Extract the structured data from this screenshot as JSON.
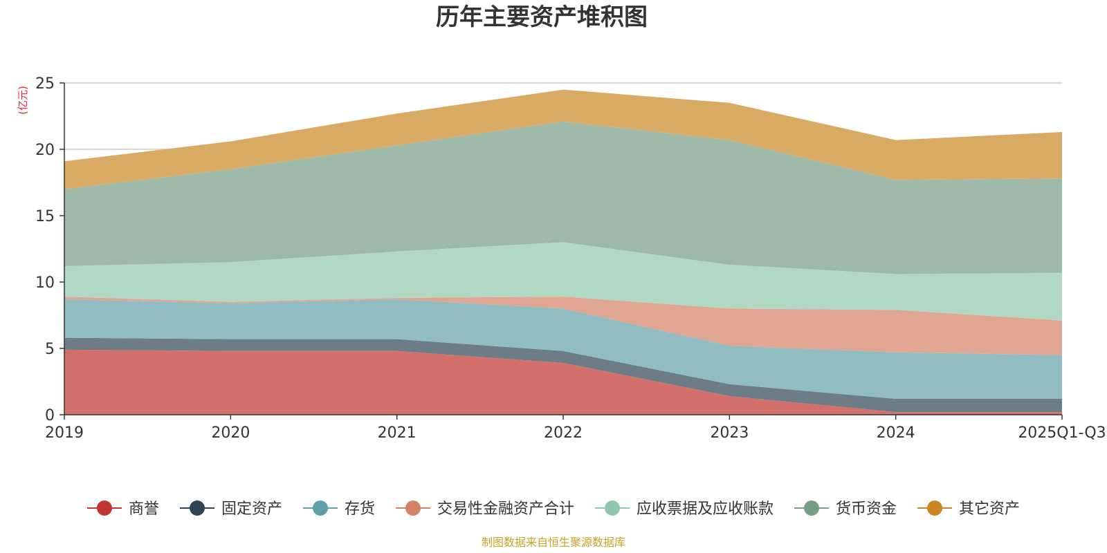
{
  "chart_data": {
    "type": "area",
    "stacked": true,
    "title": "历年主要资产堆积图",
    "unit_label": "(亿元)",
    "source_note": "制图数据来自恒生聚源数据库",
    "x": [
      "2019",
      "2020",
      "2021",
      "2022",
      "2023",
      "2024",
      "2025Q1-Q3"
    ],
    "ylim": [
      0,
      25
    ],
    "yticks": [
      0,
      5,
      10,
      15,
      20,
      25
    ],
    "grid": true,
    "legend_position": "bottom",
    "series": [
      {
        "name": "商誉",
        "color": "#c23531",
        "fill": "#d4706c",
        "values": [
          4.9,
          4.8,
          4.8,
          3.9,
          1.4,
          0.2,
          0.2
        ]
      },
      {
        "name": "固定资产",
        "color": "#2f4554",
        "fill": "#6e7c86",
        "values": [
          0.9,
          0.9,
          0.9,
          0.9,
          0.9,
          1.0,
          1.0
        ]
      },
      {
        "name": "存货",
        "color": "#61a0a8",
        "fill": "#90bcc2",
        "values": [
          2.9,
          2.7,
          3.0,
          3.2,
          2.9,
          3.5,
          3.3
        ]
      },
      {
        "name": "交易性金融资产合计",
        "color": "#d48265",
        "fill": "#e0a692",
        "values": [
          0.2,
          0.1,
          0.1,
          0.9,
          2.8,
          3.2,
          2.6
        ]
      },
      {
        "name": "应收票据及应收账款",
        "color": "#91c7ae",
        "fill": "#b1d7c5",
        "values": [
          2.3,
          3.0,
          3.5,
          4.1,
          3.3,
          2.7,
          3.6
        ]
      },
      {
        "name": "货币资金",
        "color": "#749f83",
        "fill": "#9eb9a7",
        "values": [
          5.8,
          7.0,
          8.0,
          9.1,
          9.4,
          7.1,
          7.1
        ]
      },
      {
        "name": "其它资产",
        "color": "#ca8622",
        "fill": "#d9aa63",
        "values": [
          2.1,
          2.1,
          2.4,
          2.4,
          2.8,
          3.0,
          3.5
        ]
      }
    ]
  }
}
